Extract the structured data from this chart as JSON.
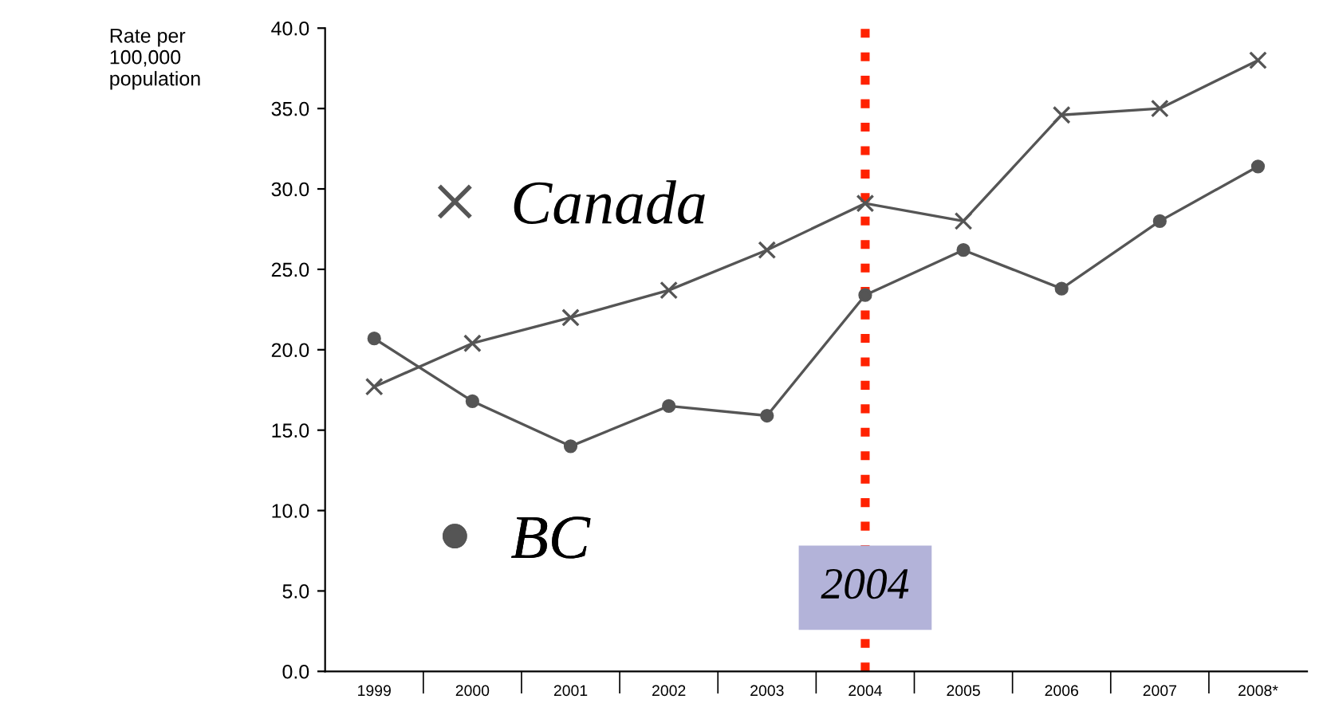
{
  "chart_data": {
    "type": "line",
    "ylabel": "Rate per\n100,000\npopulation",
    "categories": [
      "1999",
      "2000",
      "2001",
      "2002",
      "2003",
      "2004",
      "2005",
      "2006",
      "2007",
      "2008*"
    ],
    "series": [
      {
        "name": "Canada",
        "color": "#555555",
        "marker": "cross",
        "values": [
          17.7,
          20.4,
          22.0,
          23.7,
          26.2,
          29.1,
          28.0,
          34.6,
          35.0,
          38.0
        ]
      },
      {
        "name": "BC",
        "color": "#555555",
        "marker": "circle",
        "values": [
          20.7,
          16.8,
          14.0,
          16.5,
          15.9,
          23.4,
          26.2,
          23.8,
          28.0,
          31.4
        ]
      }
    ],
    "ylim": [
      0,
      40
    ],
    "yticks": [
      {
        "value": 0,
        "label": "0.0"
      },
      {
        "value": 5,
        "label": "5.0"
      },
      {
        "value": 10,
        "label": "10.0"
      },
      {
        "value": 15,
        "label": "15.0"
      },
      {
        "value": 20,
        "label": "20.0"
      },
      {
        "value": 25,
        "label": "25.0"
      },
      {
        "value": 30,
        "label": "30.0"
      },
      {
        "value": 35,
        "label": "35.0"
      },
      {
        "value": 40,
        "label": "40.0"
      }
    ],
    "ref_lines": [
      {
        "axis": "x",
        "value": "2004",
        "label": "2004",
        "color": "#ff2200",
        "line_style": "dotted"
      }
    ],
    "grid": false,
    "legend": "left",
    "line_style": "solid"
  }
}
